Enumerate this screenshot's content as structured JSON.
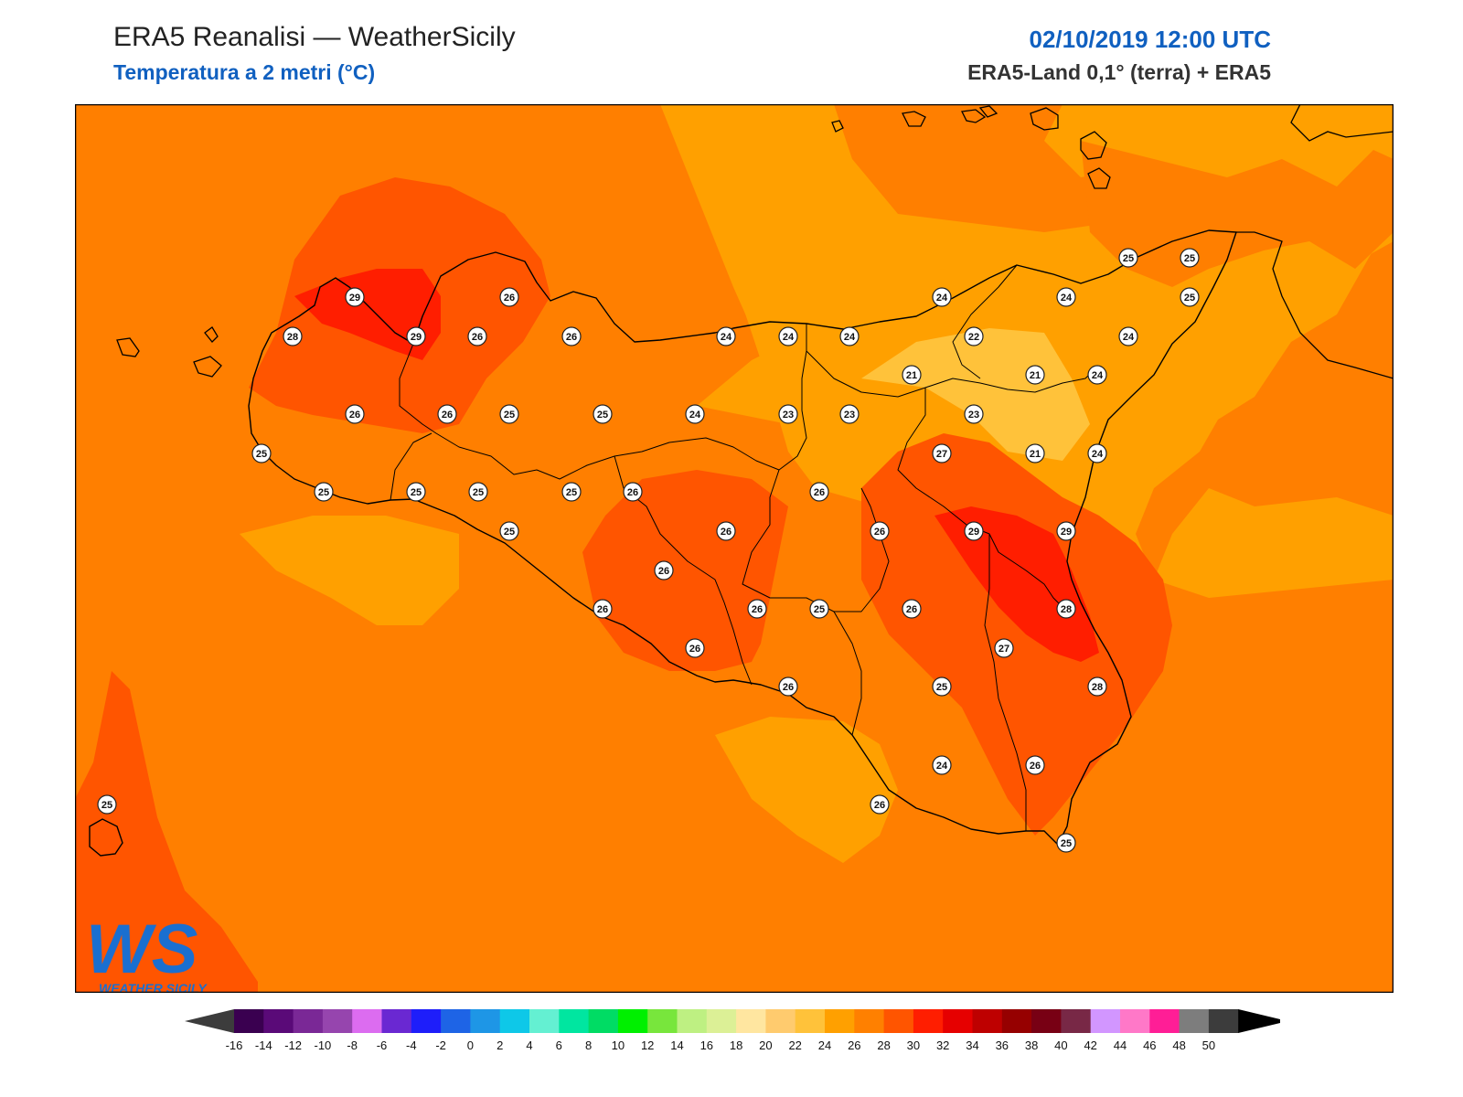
{
  "header": {
    "title": "ERA5 Reanalisi — WeatherSicily",
    "subtitle": "Temperatura a 2 metri (°C)",
    "datetime": "02/10/2019 12:00 UTC",
    "source": "ERA5-Land 0,1° (terra) + ERA5"
  },
  "logo": {
    "mark": "WS",
    "name": "WEATHER SICILY"
  },
  "colors": {
    "t20": "#ffd36a",
    "t22": "#ffc23a",
    "t24": "#ffa000",
    "t26": "#ff7f00",
    "t28": "#ff5500",
    "t30": "#ff1e00",
    "coast": "#000000",
    "frame": "#000000"
  },
  "stations": [
    {
      "v": "29"
    },
    {
      "v": "26"
    },
    {
      "v": "28"
    },
    {
      "v": "29"
    },
    {
      "v": "26"
    },
    {
      "v": "26"
    },
    {
      "v": "24"
    },
    {
      "v": "24"
    },
    {
      "v": "24"
    },
    {
      "v": "24"
    },
    {
      "v": "22"
    },
    {
      "v": "24"
    },
    {
      "v": "24"
    },
    {
      "v": "25"
    },
    {
      "v": "25"
    },
    {
      "v": "25"
    },
    {
      "v": "21"
    },
    {
      "v": "21"
    },
    {
      "v": "24"
    },
    {
      "v": "26"
    },
    {
      "v": "26"
    },
    {
      "v": "25"
    },
    {
      "v": "25"
    },
    {
      "v": "24"
    },
    {
      "v": "23"
    },
    {
      "v": "23"
    },
    {
      "v": "23"
    },
    {
      "v": "25"
    },
    {
      "v": "25"
    },
    {
      "v": "25"
    },
    {
      "v": "25"
    },
    {
      "v": "25"
    },
    {
      "v": "26"
    },
    {
      "v": "26"
    },
    {
      "v": "27"
    },
    {
      "v": "21"
    },
    {
      "v": "24"
    },
    {
      "v": "25"
    },
    {
      "v": "26"
    },
    {
      "v": "26"
    },
    {
      "v": "29"
    },
    {
      "v": "29"
    },
    {
      "v": "26"
    },
    {
      "v": "26"
    },
    {
      "v": "25"
    },
    {
      "v": "26"
    },
    {
      "v": "28"
    },
    {
      "v": "26"
    },
    {
      "v": "27"
    },
    {
      "v": "26"
    },
    {
      "v": "26"
    },
    {
      "v": "25"
    },
    {
      "v": "28"
    },
    {
      "v": "24"
    },
    {
      "v": "26"
    },
    {
      "v": "26"
    },
    {
      "v": "25"
    },
    {
      "v": "25"
    }
  ],
  "colorbar": {
    "colors": [
      "#3a0050",
      "#5a0a78",
      "#7a2896",
      "#9645ae",
      "#dc6cf0",
      "#6a28d2",
      "#1e1efa",
      "#1e64e6",
      "#1e96e6",
      "#0ec8e8",
      "#64f0d2",
      "#00e6a0",
      "#00dc64",
      "#00f000",
      "#78e63c",
      "#bef082",
      "#dcf096",
      "#ffe6a0",
      "#ffcb6e",
      "#ffc23a",
      "#ffa000",
      "#ff8000",
      "#ff5500",
      "#ff1e00",
      "#e60000",
      "#be0000",
      "#960000",
      "#780014",
      "#782846",
      "#d296ff",
      "#ff78c8",
      "#ff1e96",
      "#7d7d7d",
      "#3c3c3c"
    ],
    "left_color": "#3c3c3c",
    "right_color": "#000000",
    "labels": [
      "-16",
      "-14",
      "-12",
      "-10",
      "-8",
      "-6",
      "-4",
      "-2",
      "0",
      "2",
      "4",
      "6",
      "8",
      "10",
      "12",
      "14",
      "16",
      "18",
      "20",
      "22",
      "24",
      "26",
      "28",
      "30",
      "32",
      "34",
      "36",
      "38",
      "40",
      "42",
      "44",
      "46",
      "48",
      "50"
    ]
  }
}
